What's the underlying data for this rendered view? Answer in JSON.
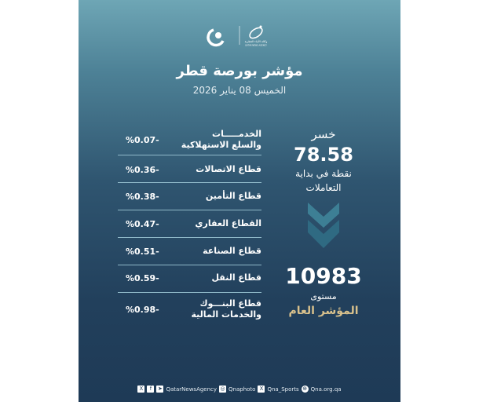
{
  "header": {
    "agency_name_ar": "وكالة الأنباء القطرية",
    "agency_name_en": "QATAR NEWS AGENCY",
    "title": "مؤشر بورصة قطر",
    "date": "الخميس 08 يناير 2026"
  },
  "sectors": [
    {
      "line1": "الخدمـــــات",
      "line2": "والسلع الاستهلاكية",
      "change": "%0.07-"
    },
    {
      "line1": "قطاع الاتصالات",
      "line2": "",
      "change": "%0.36-"
    },
    {
      "line1": "قطاع التأمين",
      "line2": "",
      "change": "%0.38-"
    },
    {
      "line1": "القطاع العقاري",
      "line2": "",
      "change": "%0.47-"
    },
    {
      "line1": "قطاع الصناعة",
      "line2": "",
      "change": "%0.51-"
    },
    {
      "line1": "قطاع النقل",
      "line2": "",
      "change": "%0.59-"
    },
    {
      "line1": "قطاع البنـــوك",
      "line2": "والخدمات المالية",
      "change": "%0.98-"
    }
  ],
  "summary": {
    "direction": "خسر",
    "points": "78.58",
    "points_label_1": "نقطة في بداية",
    "points_label_2": "التعاملات",
    "trend_icon": "double-chevron-down",
    "index_level": "10983",
    "level_label": "مستوى",
    "index_label": "المؤشر العام"
  },
  "colors": {
    "accent_gold": "#d9c18c",
    "divider": "#8fb8c8"
  },
  "footer": {
    "handle_main": "QatarNewsAgency",
    "handle_photo": "Qnaphoto",
    "handle_sports": "Qna_Sports",
    "website": "Qna.org.qa"
  }
}
